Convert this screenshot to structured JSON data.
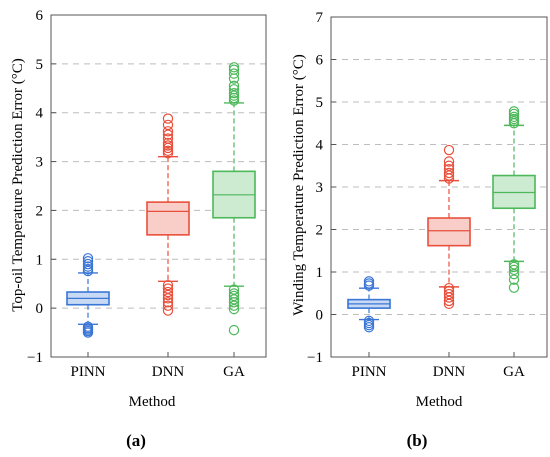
{
  "colors": {
    "PINN": "#3a76d6",
    "DNN": "#e8503c",
    "GA": "#4db85a",
    "grid": "#bdbdbd",
    "axis": "#555555"
  },
  "chart_data": [
    {
      "type": "box",
      "panel_label": "(a)",
      "xlabel": "Method",
      "ylabel": "Top-oil Temperature Prediction Error (°C)",
      "ylim": [
        -1,
        6
      ],
      "yticks": [
        -1,
        0,
        1,
        2,
        3,
        4,
        5,
        6
      ],
      "grid": "horizontal dashed",
      "categories": [
        "PINN",
        "DNN",
        "GA"
      ],
      "boxes": [
        {
          "category": "PINN",
          "q1": 0.07,
          "median": 0.2,
          "q3": 0.33,
          "whisker_low": -0.33,
          "whisker_high": 0.72,
          "outliers": [
            -0.38,
            -0.41,
            -0.44,
            -0.47,
            -0.5,
            0.76,
            0.8,
            0.85,
            0.9,
            0.96,
            1.02
          ]
        },
        {
          "category": "DNN",
          "q1": 1.5,
          "median": 1.98,
          "q3": 2.17,
          "whisker_low": 0.55,
          "whisker_high": 3.1,
          "outliers": [
            -0.05,
            0.05,
            0.12,
            0.2,
            0.27,
            0.33,
            0.4,
            0.47,
            3.17,
            3.22,
            3.28,
            3.33,
            3.38,
            3.47,
            3.55,
            3.62,
            3.75,
            3.88
          ]
        },
        {
          "category": "GA",
          "q1": 1.85,
          "median": 2.32,
          "q3": 2.8,
          "whisker_low": 0.45,
          "whisker_high": 4.2,
          "outliers": [
            -0.45,
            -0.02,
            0.05,
            0.12,
            0.18,
            0.25,
            0.3,
            0.38,
            4.25,
            4.3,
            4.35,
            4.4,
            4.48,
            4.55,
            4.7,
            4.8,
            4.88,
            4.93
          ]
        }
      ]
    },
    {
      "type": "box",
      "panel_label": "(b)",
      "xlabel": "Method",
      "ylabel": "Winding Temperature Prediction Error (°C)",
      "ylim": [
        -1,
        7
      ],
      "yticks": [
        -1,
        0,
        1,
        2,
        3,
        4,
        5,
        6,
        7
      ],
      "grid": "horizontal dashed",
      "categories": [
        "PINN",
        "DNN",
        "GA"
      ],
      "boxes": [
        {
          "category": "PINN",
          "q1": 0.15,
          "median": 0.25,
          "q3": 0.35,
          "whisker_low": -0.12,
          "whisker_high": 0.62,
          "outliers": [
            -0.15,
            -0.2,
            -0.25,
            -0.3,
            0.68,
            0.73,
            0.78
          ]
        },
        {
          "category": "DNN",
          "q1": 1.62,
          "median": 1.97,
          "q3": 2.27,
          "whisker_low": 0.65,
          "whisker_high": 3.15,
          "outliers": [
            0.25,
            0.32,
            0.4,
            0.48,
            0.55,
            0.62,
            3.2,
            3.27,
            3.33,
            3.42,
            3.5,
            3.6,
            3.87
          ]
        },
        {
          "category": "GA",
          "q1": 2.5,
          "median": 2.87,
          "q3": 3.27,
          "whisker_low": 1.25,
          "whisker_high": 4.45,
          "outliers": [
            0.63,
            0.82,
            0.95,
            1.05,
            1.12,
            1.18,
            4.5,
            4.55,
            4.6,
            4.65,
            4.72,
            4.78
          ]
        }
      ]
    }
  ]
}
